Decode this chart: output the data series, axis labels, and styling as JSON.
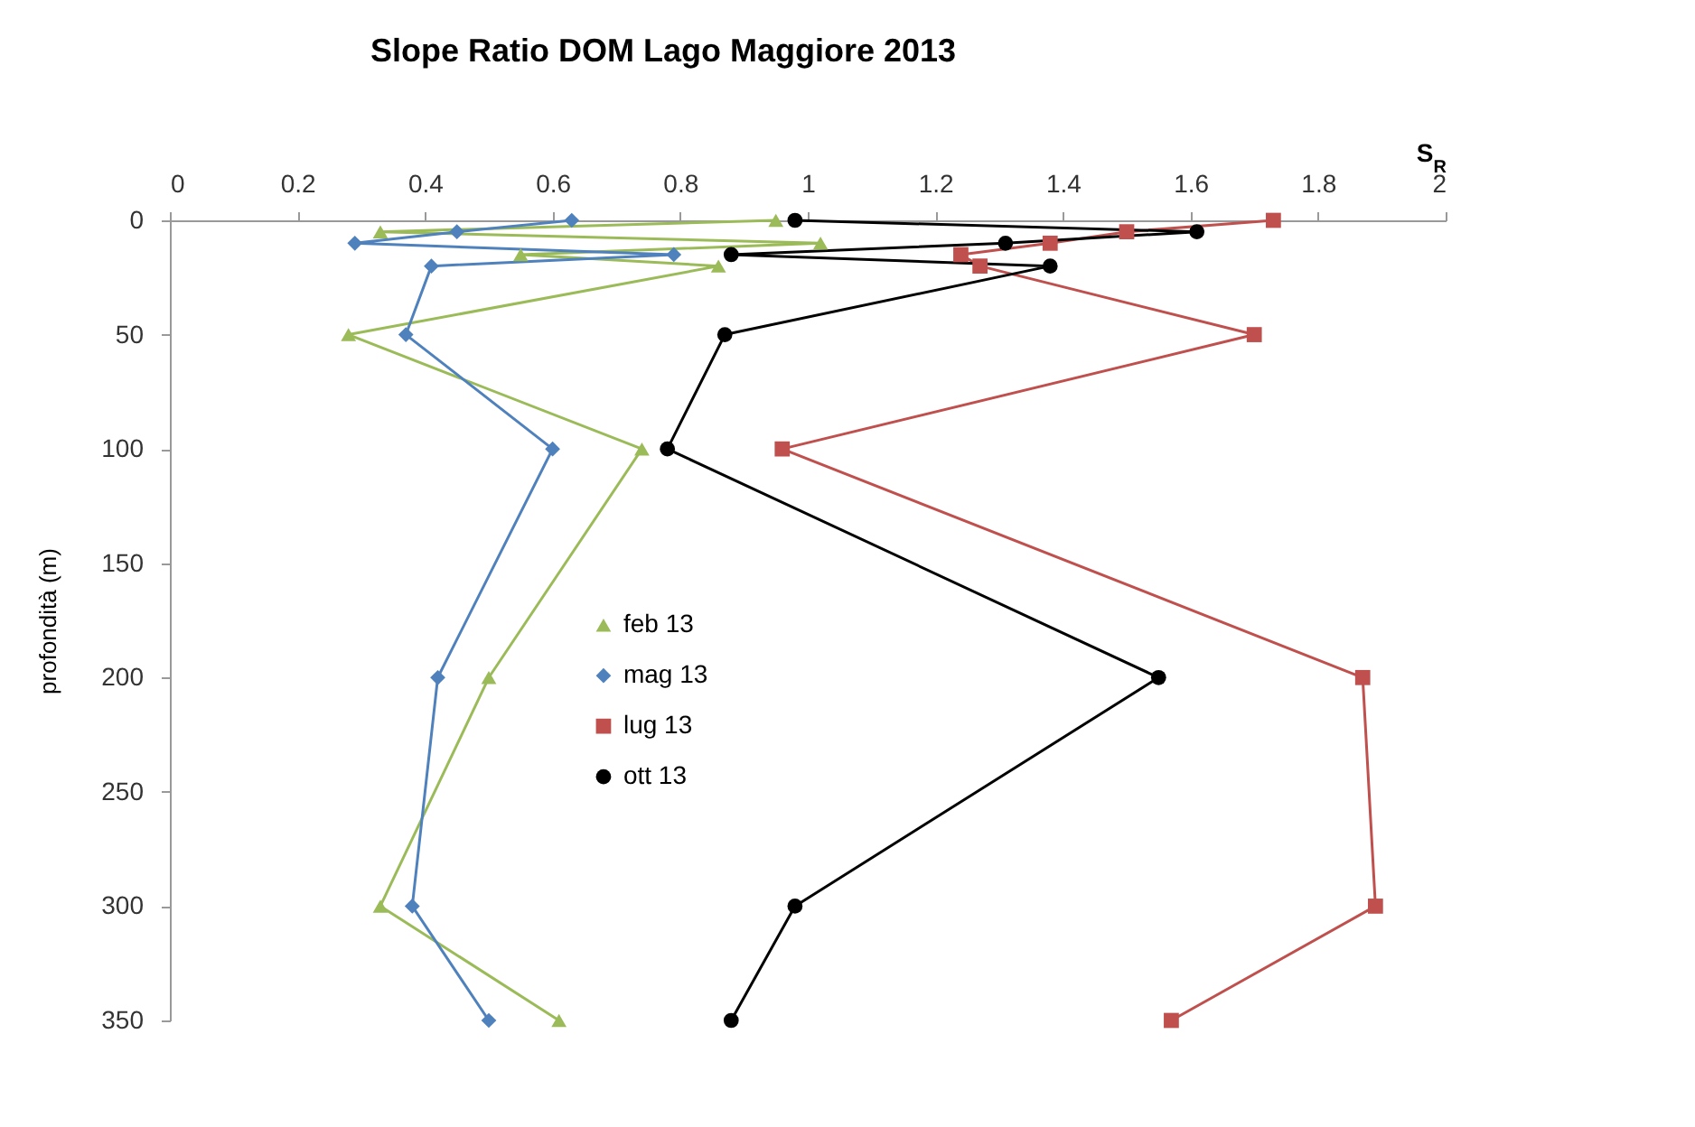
{
  "chart_data": {
    "type": "line",
    "title": "Slope Ratio DOM     Lago Maggiore 2013",
    "xlabel": "S$_{R}$",
    "ylabel": "profondità (m)",
    "xlim": [
      0,
      2
    ],
    "xticks": [
      0,
      0.2,
      0.4,
      0.6,
      0.8,
      1,
      1.2,
      1.4,
      1.6,
      1.8,
      2
    ],
    "ylim": [
      350,
      0
    ],
    "yticks": [
      0,
      50,
      100,
      150,
      200,
      250,
      300,
      350
    ],
    "grid": false,
    "legend": "left",
    "series": [
      {
        "name": "feb 13",
        "color": "#9bbb59",
        "marker": "triangle",
        "x": [
          0.95,
          0.33,
          1.02,
          0.55,
          0.86,
          0.28,
          0.74,
          0.5,
          0.33,
          0.61
        ],
        "values": [
          0,
          5,
          10,
          15,
          20,
          50,
          100,
          200,
          300,
          350
        ]
      },
      {
        "name": "mag 13",
        "color": "#4f81bd",
        "marker": "diamond",
        "x": [
          0.63,
          0.45,
          0.29,
          0.79,
          0.41,
          0.37,
          0.6,
          0.42,
          0.38,
          0.5
        ],
        "values": [
          0,
          5,
          10,
          15,
          20,
          50,
          100,
          200,
          300,
          350
        ]
      },
      {
        "name": "lug 13",
        "color": "#c0504d",
        "marker": "square",
        "x": [
          1.73,
          1.5,
          1.38,
          1.24,
          1.27,
          1.7,
          0.96,
          1.87,
          1.89,
          1.57
        ],
        "values": [
          0,
          5,
          10,
          15,
          20,
          50,
          100,
          200,
          300,
          350
        ]
      },
      {
        "name": "ott 13",
        "color": "#000000",
        "marker": "circle",
        "x": [
          0.98,
          1.61,
          1.31,
          0.88,
          1.38,
          0.87,
          0.78,
          1.55,
          0.98,
          0.88
        ],
        "values": [
          0,
          5,
          10,
          15,
          20,
          50,
          100,
          200,
          300,
          350
        ]
      }
    ]
  }
}
